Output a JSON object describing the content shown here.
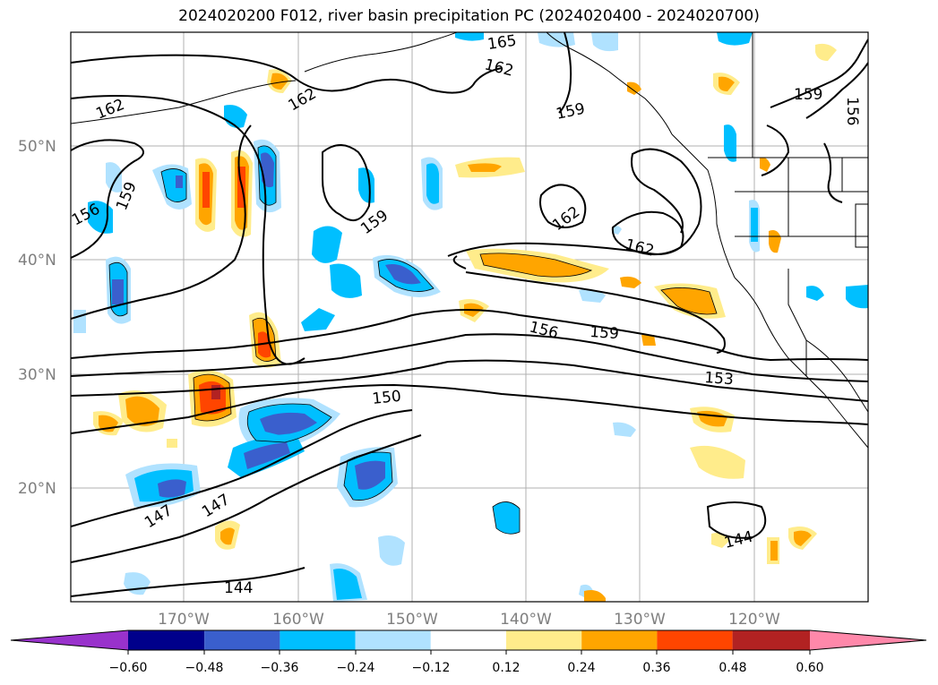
{
  "title": "2024020200 F012, river basin precipitation PC (2024020400 - 2024020700)",
  "lon_ticks": [
    "170°W",
    "160°W",
    "150°W",
    "140°W",
    "130°W",
    "120°W"
  ],
  "lat_ticks": [
    "50°N",
    "40°N",
    "30°N",
    "20°N"
  ],
  "colorbar": {
    "colors": [
      "#9932cc",
      "#00008b",
      "#3a5fcd",
      "#00bfff",
      "#b0e2ff",
      "#ffffff",
      "#ffec8b",
      "#ffa500",
      "#ff4500",
      "#b22222",
      "#ff88aa"
    ],
    "labels": [
      "−0.60",
      "−0.48",
      "−0.36",
      "−0.24",
      "−0.12",
      "0.12",
      "0.24",
      "0.36",
      "0.48",
      "0.60"
    ]
  },
  "contour_labels": [
    "165",
    "162",
    "162",
    "162",
    "159",
    "159",
    "159",
    "156",
    "156",
    "159",
    "162",
    "162",
    "156",
    "159",
    "153",
    "150",
    "147",
    "147",
    "144",
    "144"
  ]
}
